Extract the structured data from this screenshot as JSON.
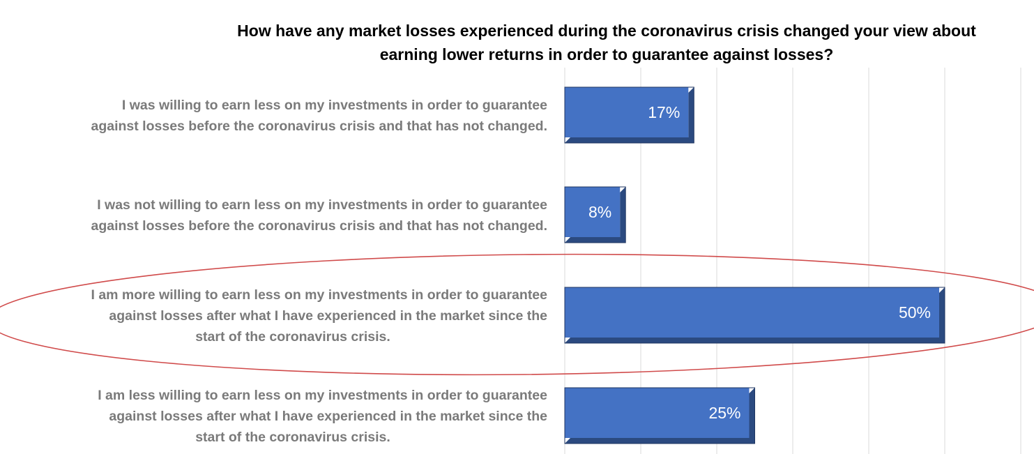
{
  "chart_data": {
    "type": "bar",
    "orientation": "horizontal",
    "title": [
      "How have any market losses experienced during the coronavirus crisis changed your view about",
      "earning lower returns in order to guarantee against losses?"
    ],
    "categories": [
      [
        "I was willing to earn less on my investments in order to guarantee",
        "against losses before the coronavirus crisis and that has not changed."
      ],
      [
        "I was not willing to earn less on my investments in order to guarantee",
        "against losses before the coronavirus crisis and that has not changed."
      ],
      [
        "I am more willing to earn less on my investments in order to guarantee",
        "against losses after what I have experienced in the market since the",
        "start of the coronavirus crisis."
      ],
      [
        "I am less willing to earn less on my investments in order to guarantee",
        "against losses after what I have experienced in the market since the",
        "start of the coronavirus crisis."
      ]
    ],
    "values": [
      17,
      8,
      50,
      25
    ],
    "value_labels": [
      "17%",
      "8%",
      "50%",
      "25%"
    ],
    "unit": "%",
    "xlim": [
      0,
      60
    ],
    "grid": true,
    "legend": "none",
    "highlighted_index": 2,
    "colors": {
      "bar_fill": "#4472c4",
      "bar_shadow": "#2b4a80",
      "bar_edge_dark": "#1f3560",
      "gridline": "#d9d9d9",
      "highlight_ellipse": "#d04a4a",
      "category_text": "#7a7a7a",
      "value_text": "#ffffff",
      "title_text": "#000000"
    }
  }
}
